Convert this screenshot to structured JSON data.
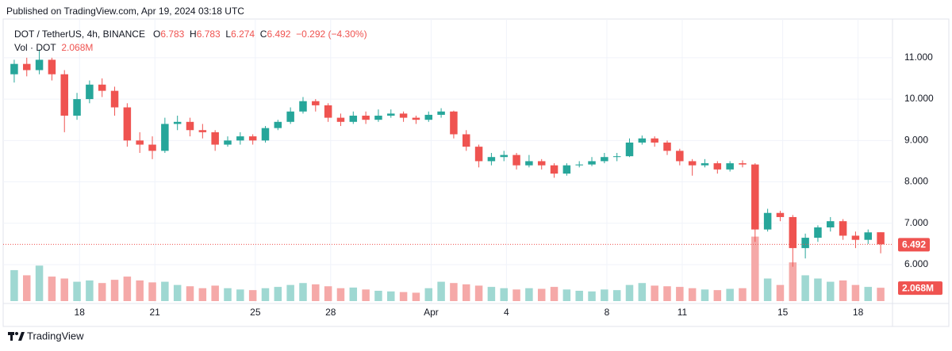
{
  "published": "Published on TradingView.com, Apr 19, 2024 03:18 UTC",
  "brand": "TradingView",
  "chart_data": {
    "type": "candlestick",
    "symbol": "DOT / TetherUS, 4h, BINANCE",
    "ohlc_labels": [
      "O",
      "H",
      "L",
      "C"
    ],
    "change": {
      "value": -0.292,
      "label": "−0.292"
    },
    "change_percent": {
      "value": -4.3,
      "label": "(−4.30%)"
    },
    "volume_title": "Vol · DOT",
    "volume_last": {
      "value": 2.068,
      "label": "2.068M"
    },
    "up_color": "#26a69a",
    "down_color": "#ef5350",
    "up_volume_color": "#9fd8d2",
    "down_volume_color": "#f5a9a8",
    "candles": [
      [
        10.6,
        10.95,
        10.4,
        10.85
      ],
      [
        10.85,
        11.0,
        10.55,
        10.7
      ],
      [
        10.7,
        11.2,
        10.6,
        10.95
      ],
      [
        10.95,
        11.0,
        10.45,
        10.6
      ],
      [
        10.6,
        10.7,
        9.2,
        9.6
      ],
      [
        9.6,
        10.15,
        9.5,
        10.0
      ],
      [
        10.0,
        10.45,
        9.9,
        10.35
      ],
      [
        10.35,
        10.5,
        10.05,
        10.2
      ],
      [
        10.2,
        10.3,
        9.6,
        9.8
      ],
      [
        9.8,
        9.9,
        8.85,
        9.0
      ],
      [
        9.0,
        9.2,
        8.7,
        8.9
      ],
      [
        8.9,
        9.1,
        8.55,
        8.75
      ],
      [
        8.75,
        9.55,
        8.7,
        9.4
      ],
      [
        9.4,
        9.6,
        9.25,
        9.45
      ],
      [
        9.45,
        9.55,
        9.1,
        9.25
      ],
      [
        9.25,
        9.4,
        9.05,
        9.2
      ],
      [
        9.2,
        9.25,
        8.75,
        8.9
      ],
      [
        8.9,
        9.1,
        8.85,
        9.0
      ],
      [
        9.0,
        9.2,
        8.9,
        9.1
      ],
      [
        9.1,
        9.15,
        8.9,
        9.0
      ],
      [
        9.0,
        9.35,
        8.95,
        9.3
      ],
      [
        9.3,
        9.5,
        9.25,
        9.45
      ],
      [
        9.45,
        9.8,
        9.4,
        9.7
      ],
      [
        9.7,
        10.05,
        9.65,
        9.95
      ],
      [
        9.95,
        10.0,
        9.7,
        9.85
      ],
      [
        9.85,
        9.9,
        9.45,
        9.55
      ],
      [
        9.55,
        9.65,
        9.35,
        9.45
      ],
      [
        9.45,
        9.7,
        9.4,
        9.6
      ],
      [
        9.6,
        9.7,
        9.4,
        9.5
      ],
      [
        9.5,
        9.75,
        9.45,
        9.6
      ],
      [
        9.6,
        9.75,
        9.55,
        9.65
      ],
      [
        9.65,
        9.7,
        9.45,
        9.55
      ],
      [
        9.55,
        9.6,
        9.4,
        9.5
      ],
      [
        9.5,
        9.7,
        9.45,
        9.62
      ],
      [
        9.62,
        9.78,
        9.55,
        9.7
      ],
      [
        9.7,
        9.72,
        9.05,
        9.15
      ],
      [
        9.15,
        9.25,
        8.75,
        8.85
      ],
      [
        8.85,
        8.9,
        8.35,
        8.5
      ],
      [
        8.5,
        8.7,
        8.4,
        8.6
      ],
      [
        8.6,
        8.75,
        8.5,
        8.65
      ],
      [
        8.65,
        8.7,
        8.3,
        8.4
      ],
      [
        8.4,
        8.65,
        8.35,
        8.5
      ],
      [
        8.5,
        8.55,
        8.3,
        8.4
      ],
      [
        8.4,
        8.45,
        8.1,
        8.2
      ],
      [
        8.2,
        8.45,
        8.15,
        8.4
      ],
      [
        8.4,
        8.5,
        8.35,
        8.42
      ],
      [
        8.42,
        8.6,
        8.38,
        8.5
      ],
      [
        8.5,
        8.7,
        8.45,
        8.6
      ],
      [
        8.6,
        8.7,
        8.5,
        8.62
      ],
      [
        8.62,
        9.05,
        8.6,
        8.95
      ],
      [
        8.95,
        9.12,
        8.9,
        9.05
      ],
      [
        9.05,
        9.1,
        8.85,
        8.95
      ],
      [
        8.95,
        9.0,
        8.65,
        8.75
      ],
      [
        8.75,
        8.8,
        8.4,
        8.5
      ],
      [
        8.5,
        8.55,
        8.15,
        8.4
      ],
      [
        8.4,
        8.55,
        8.35,
        8.45
      ],
      [
        8.45,
        8.5,
        8.2,
        8.3
      ],
      [
        8.3,
        8.5,
        8.25,
        8.45
      ],
      [
        8.45,
        8.52,
        8.35,
        8.42
      ],
      [
        8.42,
        8.45,
        6.55,
        6.85
      ],
      [
        6.85,
        7.35,
        6.8,
        7.25
      ],
      [
        7.25,
        7.3,
        7.05,
        7.15
      ],
      [
        7.15,
        7.2,
        5.95,
        6.4
      ],
      [
        6.4,
        6.75,
        6.15,
        6.65
      ],
      [
        6.65,
        6.95,
        6.55,
        6.9
      ],
      [
        6.9,
        7.15,
        6.8,
        7.05
      ],
      [
        7.05,
        7.1,
        6.6,
        6.7
      ],
      [
        6.7,
        6.8,
        6.4,
        6.6
      ],
      [
        6.6,
        6.85,
        6.5,
        6.78
      ],
      [
        6.783,
        6.783,
        6.274,
        6.492
      ]
    ],
    "volume": [
      4.8,
      4.0,
      5.5,
      3.8,
      3.5,
      3.0,
      3.2,
      2.8,
      3.3,
      3.8,
      3.2,
      2.9,
      3.0,
      2.5,
      2.3,
      2.0,
      2.4,
      2.0,
      1.8,
      1.7,
      2.0,
      2.2,
      2.5,
      2.8,
      2.6,
      2.3,
      2.0,
      2.1,
      1.8,
      1.6,
      1.5,
      1.4,
      1.3,
      2.0,
      3.0,
      2.8,
      2.6,
      2.4,
      2.2,
      2.0,
      1.8,
      2.0,
      1.9,
      2.2,
      1.8,
      1.6,
      1.5,
      1.8,
      1.7,
      2.5,
      2.8,
      2.4,
      2.3,
      2.2,
      2.0,
      1.8,
      1.7,
      1.9,
      2.0,
      10.0,
      3.5,
      2.5,
      6.0,
      4.0,
      3.5,
      3.0,
      3.2,
      2.5,
      2.2,
      2.068
    ],
    "vlim": [
      0,
      43
    ],
    "xlim": [
      -0.5,
      69.5
    ],
    "xticks": [
      {
        "value": 5.2,
        "label": "18"
      },
      {
        "value": 11.2,
        "label": "21"
      },
      {
        "value": 19.2,
        "label": "25"
      },
      {
        "value": 25.2,
        "label": "28"
      },
      {
        "value": 33.2,
        "label": "Apr"
      },
      {
        "value": 39.2,
        "label": "4"
      },
      {
        "value": 47.2,
        "label": "8"
      },
      {
        "value": 53.2,
        "label": "11"
      },
      {
        "value": 61.2,
        "label": "15"
      },
      {
        "value": 67.2,
        "label": "18"
      }
    ],
    "ylim": [
      5.12,
      11.82
    ],
    "yticks": [
      {
        "value": 6,
        "label": "6.000"
      },
      {
        "value": 7,
        "label": "7.000"
      },
      {
        "value": 8,
        "label": "8.000"
      },
      {
        "value": 9,
        "label": "9.000"
      },
      {
        "value": 10,
        "label": "10.000"
      },
      {
        "value": 11,
        "label": "11.000"
      }
    ],
    "grid": true
  }
}
